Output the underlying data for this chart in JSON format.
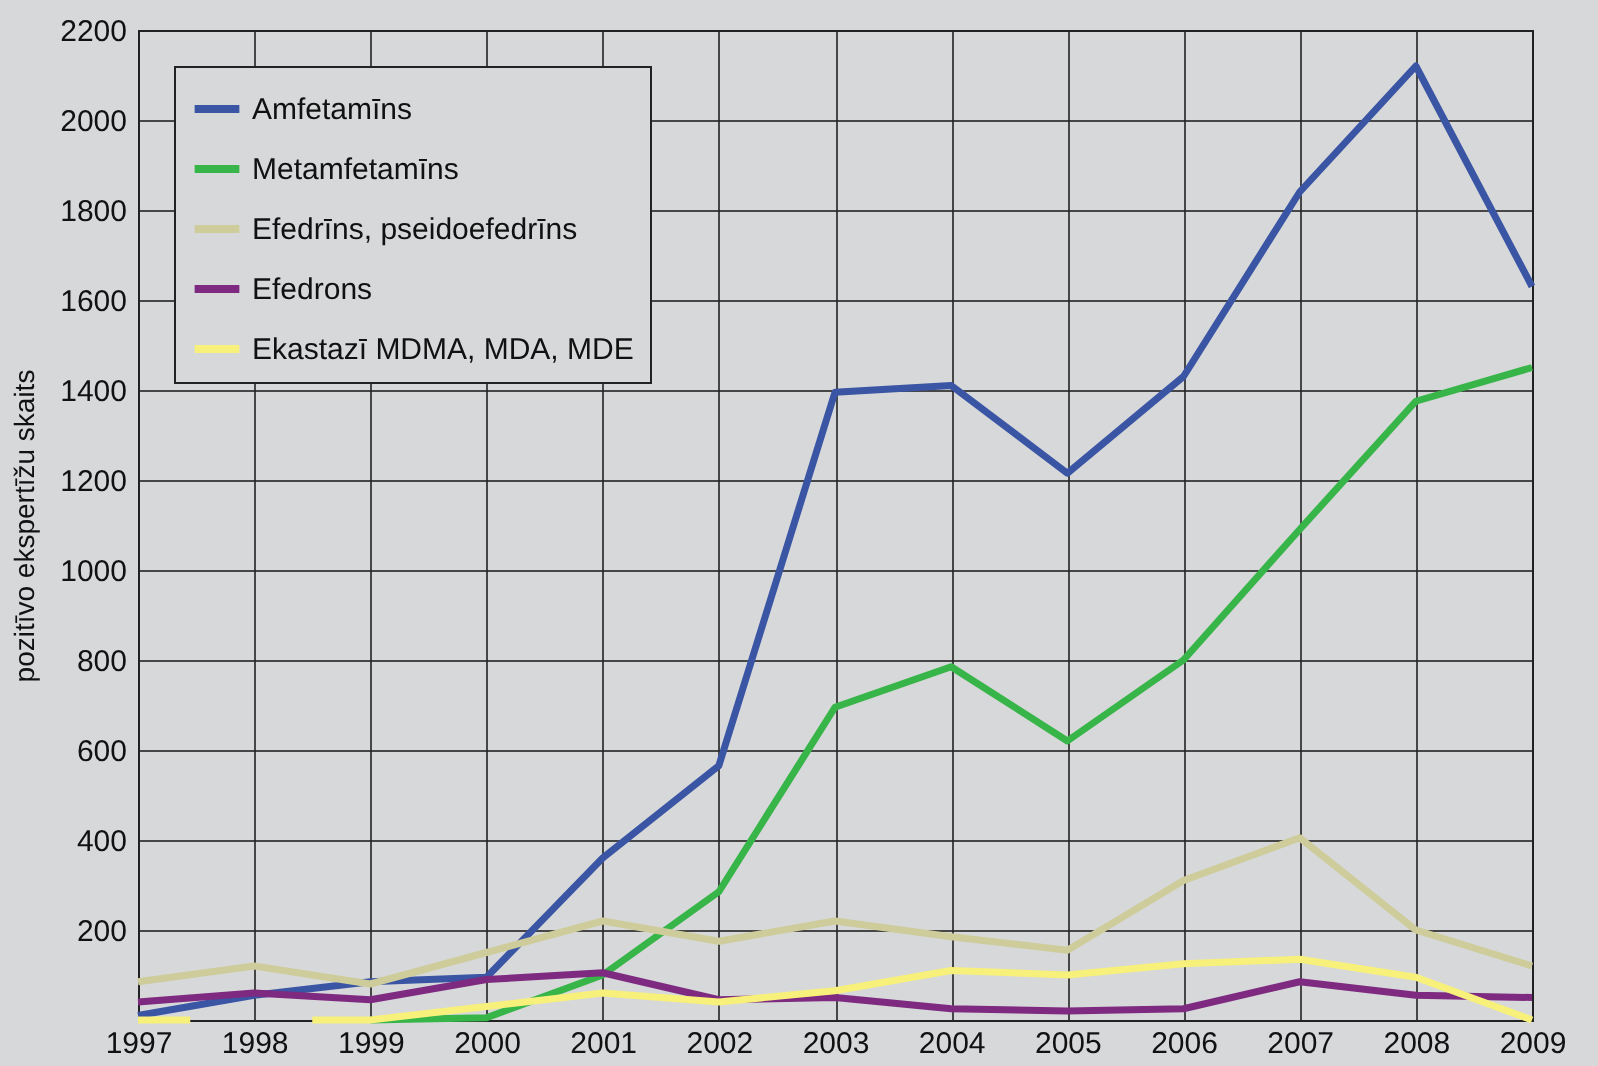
{
  "chart_data": {
    "type": "line",
    "ylabel": "pozitīvo ekspertīžu skaits",
    "x": [
      1997,
      1998,
      1999,
      2000,
      2001,
      2002,
      2003,
      2004,
      2005,
      2006,
      2007,
      2008,
      2009
    ],
    "series": [
      {
        "name": "Amfetamīns",
        "color": "#3a55a4",
        "values": [
          10,
          55,
          85,
          95,
          360,
          565,
          1395,
          1410,
          1215,
          1430,
          1840,
          2120,
          1630
        ]
      },
      {
        "name": "Metamfetamīns",
        "color": "#38b549",
        "x": [
          1999,
          2000,
          2001,
          2002,
          2003,
          2004,
          2005,
          2006,
          2007,
          2008,
          2009
        ],
        "values": [
          0,
          5,
          100,
          285,
          695,
          785,
          620,
          800,
          1090,
          1375,
          1450
        ]
      },
      {
        "name": "Efedrīns, pseidoefedrīns",
        "color": "#cdcc9a",
        "values": [
          85,
          120,
          80,
          150,
          220,
          175,
          220,
          185,
          155,
          310,
          405,
          200,
          120
        ]
      },
      {
        "name": "Efedrons",
        "color": "#7d2a80",
        "values": [
          40,
          60,
          45,
          90,
          105,
          45,
          50,
          25,
          20,
          25,
          85,
          55,
          50
        ]
      },
      {
        "name": "Ekastazī MDMA, MDA, MDE",
        "color": "#f7f07a",
        "x": [
          1997,
          1997.45,
          1998,
          1998.5,
          1999,
          2000,
          2001,
          2002,
          2003,
          2004,
          2005,
          2006,
          2007,
          2008,
          2009
        ],
        "values": [
          0,
          0,
          null,
          0,
          0,
          30,
          60,
          40,
          65,
          110,
          100,
          125,
          135,
          95,
          0
        ]
      }
    ],
    "xlim": [
      1997,
      2009
    ],
    "xticks": [
      1997,
      1998,
      1999,
      2000,
      2001,
      2002,
      2003,
      2004,
      2005,
      2006,
      2007,
      2008,
      2009
    ],
    "ylim": [
      0,
      2200
    ],
    "yticks": [
      200,
      400,
      600,
      800,
      1000,
      1200,
      1400,
      1600,
      1800,
      2000,
      2200
    ],
    "grid": true,
    "legend": "top left",
    "marker": "none",
    "line_style": "solid"
  }
}
